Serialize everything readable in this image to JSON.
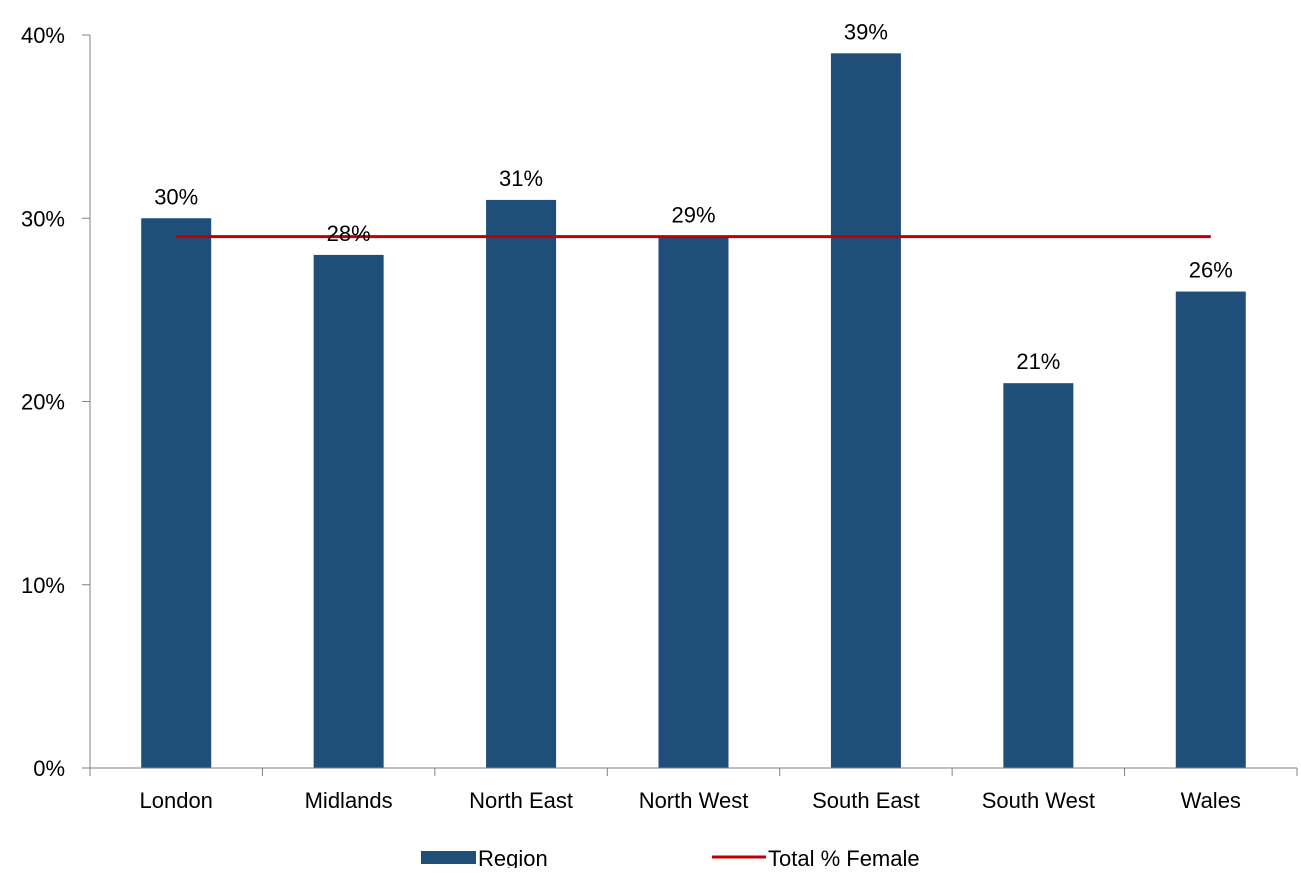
{
  "chart_data": {
    "type": "bar",
    "title": "",
    "xlabel": "",
    "ylabel": "",
    "categories": [
      "London",
      "Midlands",
      "North East",
      "North West",
      "South East",
      "South West",
      "Wales"
    ],
    "series": [
      {
        "name": "Region",
        "type": "bar",
        "values": [
          30,
          28,
          31,
          29,
          39,
          21,
          26
        ],
        "data_labels": [
          "30%",
          "28%",
          "31%",
          "29%",
          "39%",
          "21%",
          "26%"
        ],
        "color": "#1F4E79"
      },
      {
        "name": "Total % Female",
        "type": "line",
        "values": [
          29,
          29,
          29,
          29,
          29,
          29,
          29
        ],
        "color": "#C00000"
      }
    ],
    "ylim": [
      0,
      40
    ],
    "yticks": [
      0,
      10,
      20,
      30,
      40
    ],
    "ytick_labels": [
      "0%",
      "10%",
      "20%",
      "30%",
      "40%"
    ],
    "grid": false,
    "legend_position": "bottom"
  }
}
